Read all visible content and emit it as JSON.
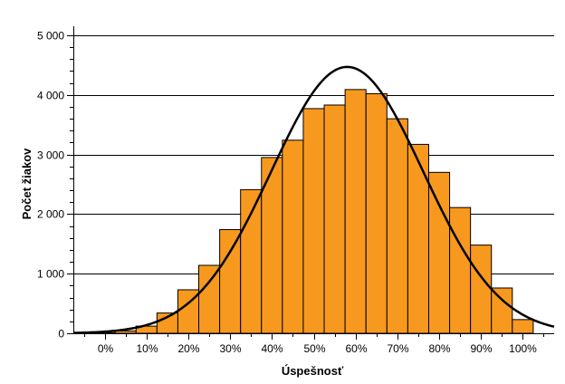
{
  "chart_data": {
    "type": "bar",
    "title": "",
    "xlabel": "Úspešnosť",
    "ylabel": "Počet žiakov",
    "xlim": [
      -7.5,
      107.5
    ],
    "ylim": [
      0,
      5000
    ],
    "bin_width": 5,
    "bins_start": [
      -2.5,
      2.5,
      7.5,
      12.5,
      17.5,
      22.5,
      27.5,
      32.5,
      37.5,
      42.5,
      47.5,
      52.5,
      57.5,
      62.5,
      67.5,
      72.5,
      77.5,
      82.5,
      87.5,
      92.5,
      97.5
    ],
    "values": [
      10,
      40,
      120,
      340,
      730,
      1140,
      1740,
      2410,
      2950,
      3240,
      3770,
      3830,
      4090,
      4020,
      3600,
      3170,
      2700,
      2110,
      1480,
      760,
      230
    ],
    "x_ticks": [
      0,
      10,
      20,
      30,
      40,
      50,
      60,
      70,
      80,
      90,
      100
    ],
    "x_tick_labels": [
      "0%",
      "10%",
      "20%",
      "30%",
      "40%",
      "50%",
      "60%",
      "70%",
      "80%",
      "90%",
      "100%"
    ],
    "y_ticks": [
      0,
      1000,
      2000,
      3000,
      4000,
      5000
    ],
    "y_tick_labels": [
      "0",
      "1 000",
      "2 000",
      "3 000",
      "4 000",
      "5 000"
    ],
    "normal_curve": {
      "mean": 58,
      "sd": 18.2,
      "peak": 4470
    },
    "grid": "horizontal",
    "legend": "none",
    "colors": {
      "bar_fill": "#f7991f",
      "bar_stroke": "#000000",
      "curve": "#000000",
      "grid": "#000000"
    }
  }
}
